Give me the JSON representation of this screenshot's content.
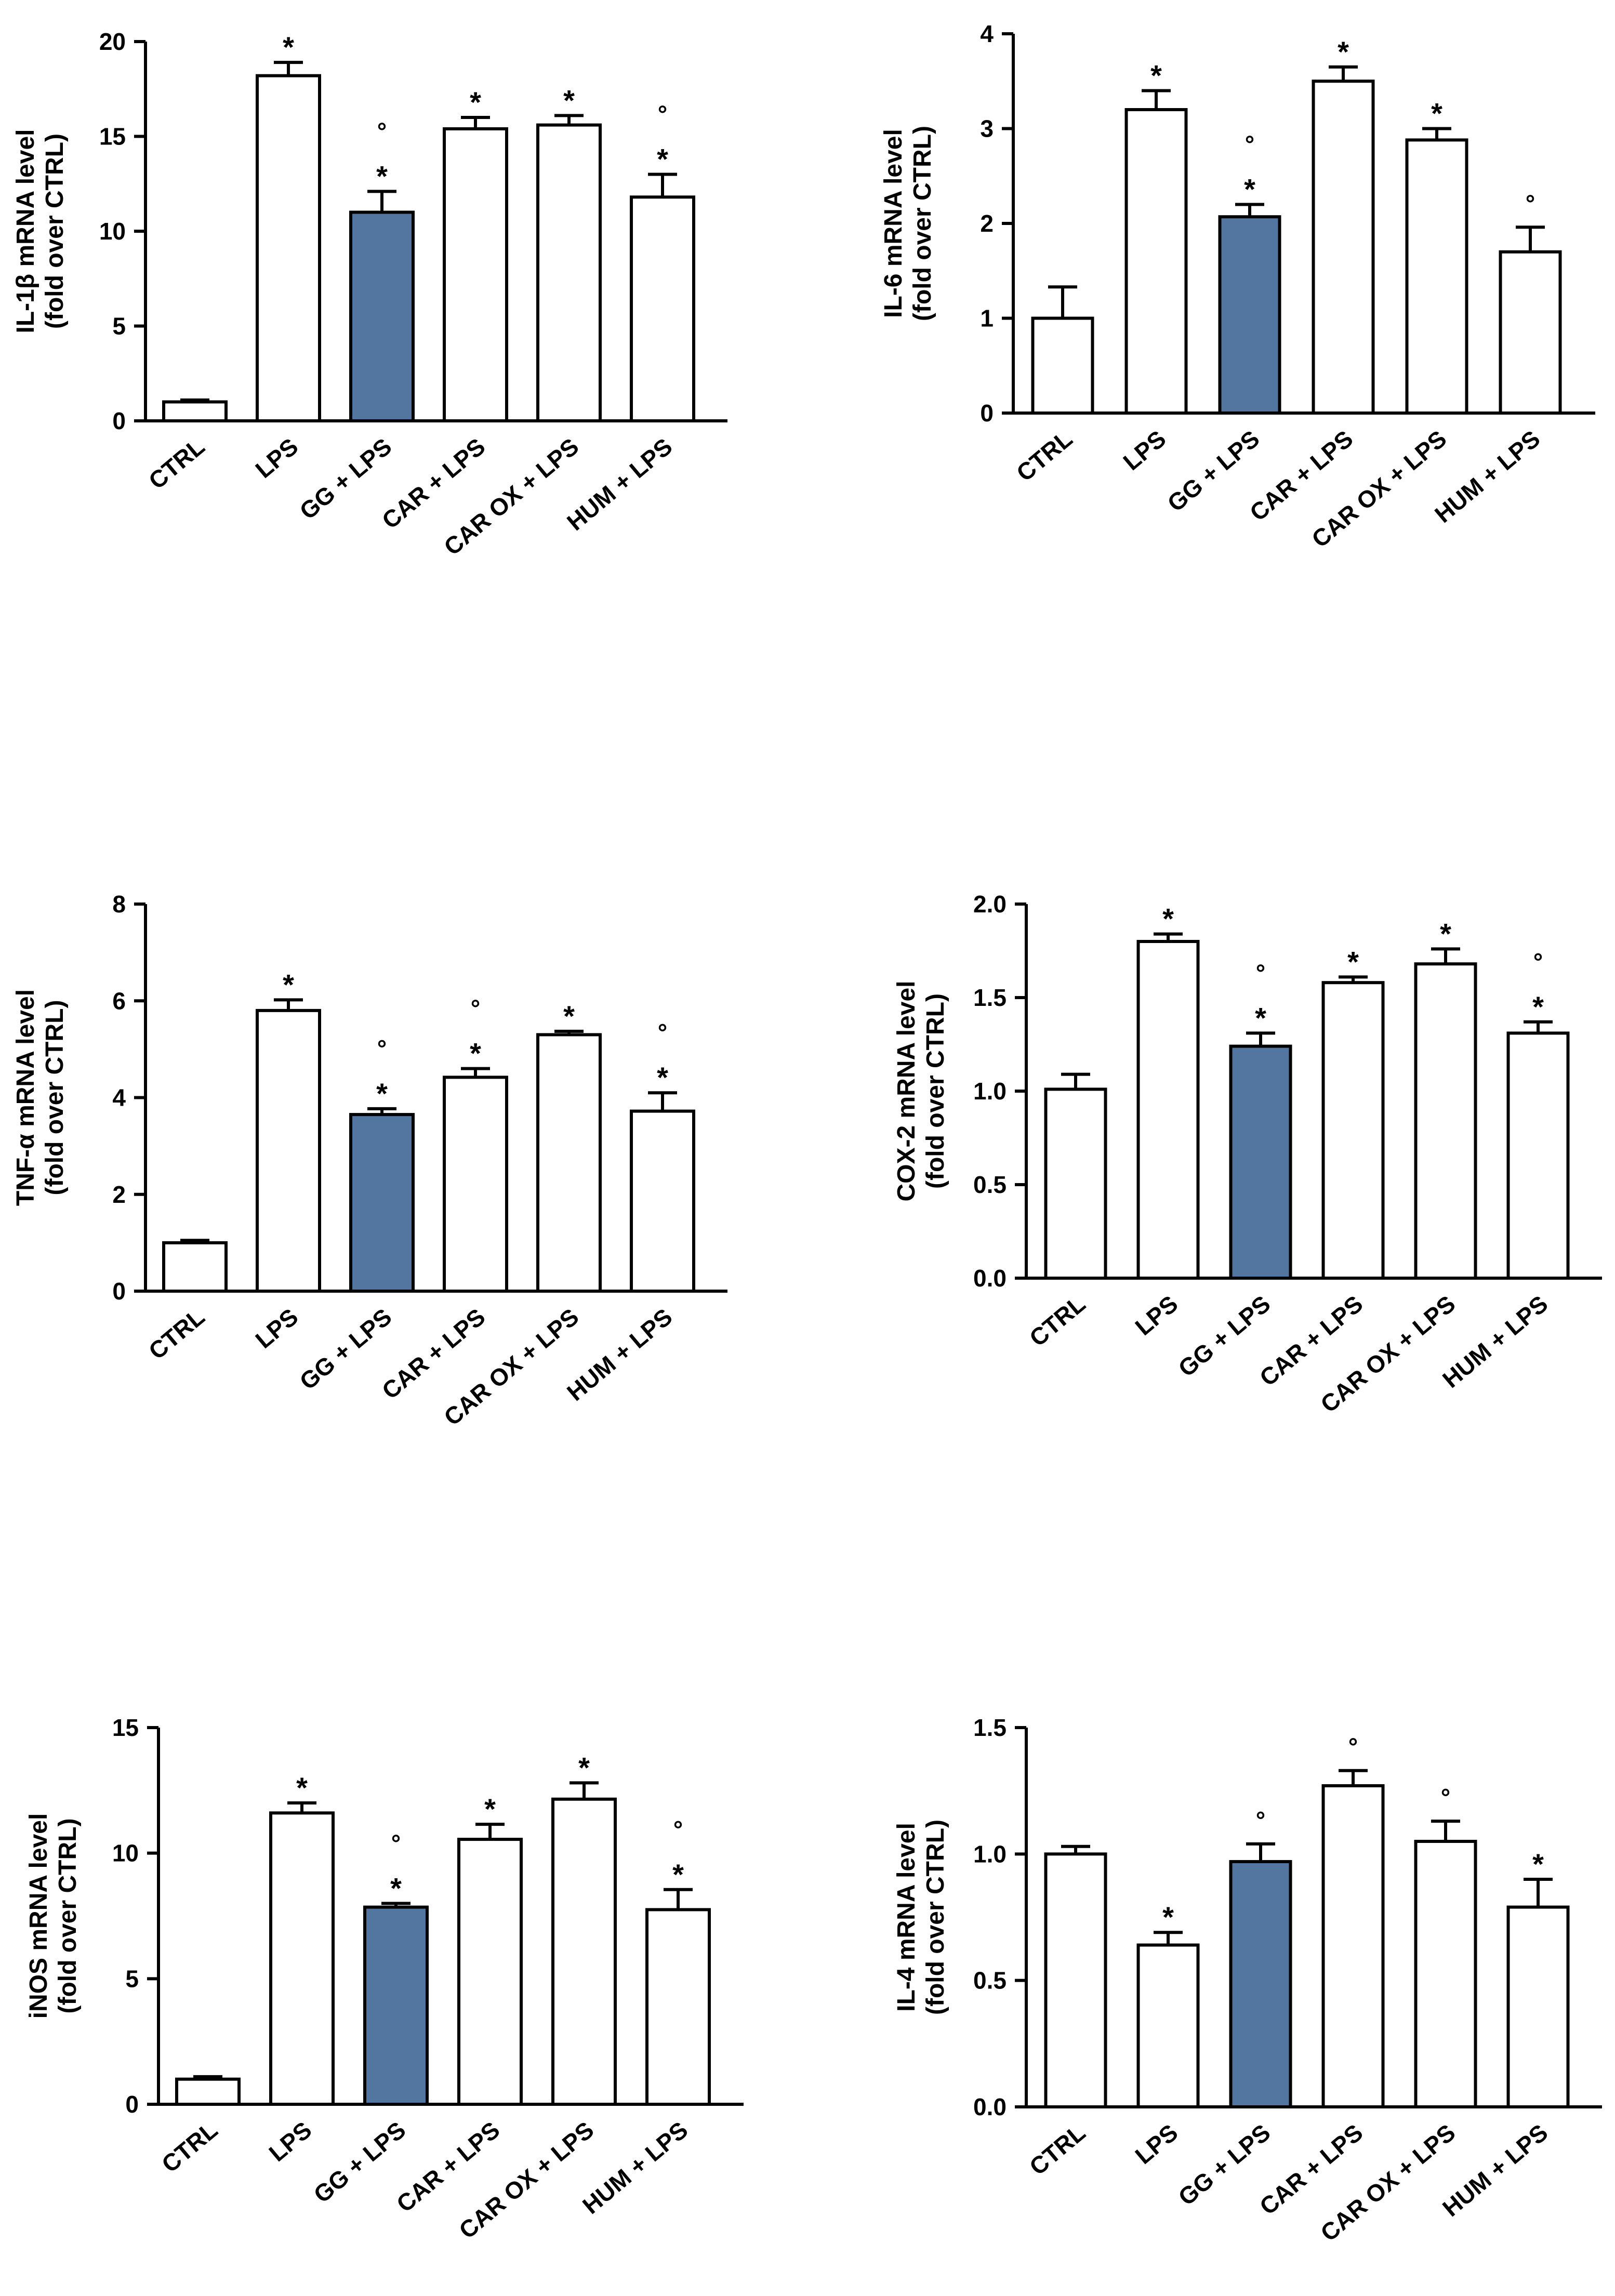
{
  "colors": {
    "highlight": "#52769f",
    "default": "#ffffff",
    "stroke": "#000000"
  },
  "chart_data": [
    {
      "id": "il1b",
      "type": "bar",
      "ylabel_line1": "IL-1β mRNA level",
      "ylabel_line2": "(fold over CTRL)",
      "ylim": [
        0,
        20
      ],
      "yticks": [
        0,
        5,
        10,
        15,
        20
      ],
      "tick_labels": [
        "0",
        "5",
        "10",
        "15",
        "20"
      ],
      "categories": [
        "CTRL",
        "LPS",
        "GG + LPS",
        "CAR + LPS",
        "CAR OX + LPS",
        "HUM + LPS"
      ],
      "values": [
        1.0,
        18.2,
        11.0,
        15.4,
        15.6,
        11.8
      ],
      "errors": [
        0.1,
        0.7,
        1.1,
        0.6,
        0.5,
        1.2
      ],
      "highlight": [
        false,
        false,
        true,
        false,
        false,
        false
      ],
      "annotations": [
        "",
        "*",
        "°\n*",
        "*",
        "*",
        "°\n*"
      ]
    },
    {
      "id": "il6",
      "type": "bar",
      "ylabel_line1": "IL-6 mRNA level",
      "ylabel_line2": "(fold over CTRL)",
      "ylim": [
        0,
        4
      ],
      "yticks": [
        0,
        1,
        2,
        3,
        4
      ],
      "tick_labels": [
        "0",
        "1",
        "2",
        "3",
        "4"
      ],
      "categories": [
        "CTRL",
        "LPS",
        "GG + LPS",
        "CAR + LPS",
        "CAR OX + LPS",
        "HUM + LPS"
      ],
      "values": [
        1.0,
        3.2,
        2.07,
        3.5,
        2.88,
        1.7
      ],
      "errors": [
        0.33,
        0.2,
        0.13,
        0.15,
        0.12,
        0.26
      ],
      "highlight": [
        false,
        false,
        true,
        false,
        false,
        false
      ],
      "annotations": [
        "",
        "*",
        "°\n*",
        "*",
        "*",
        "°"
      ]
    },
    {
      "id": "tnfa",
      "type": "bar",
      "ylabel_line1": "TNF-α mRNA level",
      "ylabel_line2": "(fold over CTRL)",
      "ylim": [
        0,
        8
      ],
      "yticks": [
        0,
        2,
        4,
        6,
        8
      ],
      "tick_labels": [
        "0",
        "2",
        "4",
        "6",
        "8"
      ],
      "categories": [
        "CTRL",
        "LPS",
        "GG + LPS",
        "CAR + LPS",
        "CAR OX + LPS",
        "HUM + LPS"
      ],
      "values": [
        1.0,
        5.8,
        3.65,
        4.42,
        5.3,
        3.72
      ],
      "errors": [
        0.05,
        0.22,
        0.12,
        0.18,
        0.07,
        0.38
      ],
      "highlight": [
        false,
        false,
        true,
        false,
        false,
        false
      ],
      "annotations": [
        "",
        "*",
        "°\n*",
        "°\n*",
        "*",
        "°\n*"
      ]
    },
    {
      "id": "cox2",
      "type": "bar",
      "ylabel_line1": "COX-2 mRNA level",
      "ylabel_line2": "(fold over CTRL)",
      "ylim": [
        0,
        2.0
      ],
      "yticks": [
        0,
        0.5,
        1.0,
        1.5,
        2.0
      ],
      "tick_labels": [
        "0.0",
        "0.5",
        "1.0",
        "1.5",
        "2.0"
      ],
      "categories": [
        "CTRL",
        "LPS",
        "GG + LPS",
        "CAR + LPS",
        "CAR OX + LPS",
        "HUM + LPS"
      ],
      "values": [
        1.01,
        1.8,
        1.24,
        1.58,
        1.68,
        1.31
      ],
      "errors": [
        0.08,
        0.04,
        0.07,
        0.03,
        0.08,
        0.06
      ],
      "highlight": [
        false,
        false,
        true,
        false,
        false,
        false
      ],
      "annotations": [
        "",
        "*",
        "°\n*",
        "*",
        "*",
        "°\n*"
      ]
    },
    {
      "id": "inos",
      "type": "bar",
      "ylabel_line1": "iNOS mRNA level",
      "ylabel_line2": "(fold over CTRL)",
      "ylim": [
        0,
        15
      ],
      "yticks": [
        0,
        5,
        10,
        15
      ],
      "tick_labels": [
        "0",
        "5",
        "10",
        "15"
      ],
      "categories": [
        "CTRL",
        "LPS",
        "GG + LPS",
        "CAR + LPS",
        "CAR OX + LPS",
        "HUM + LPS"
      ],
      "values": [
        1.0,
        11.6,
        7.85,
        10.55,
        12.15,
        7.75
      ],
      "errors": [
        0.1,
        0.4,
        0.15,
        0.6,
        0.65,
        0.8
      ],
      "highlight": [
        false,
        false,
        true,
        false,
        false,
        false
      ],
      "annotations": [
        "",
        "*",
        "°\n*",
        "*",
        "*",
        "°\n*"
      ]
    },
    {
      "id": "il4",
      "type": "bar",
      "ylabel_line1": "IL-4 mRNA level",
      "ylabel_line2": "(fold over CTRL)",
      "ylim": [
        0,
        1.5
      ],
      "yticks": [
        0,
        0.5,
        1.0,
        1.5
      ],
      "tick_labels": [
        "0.0",
        "0.5",
        "1.0",
        "1.5"
      ],
      "categories": [
        "CTRL",
        "LPS",
        "GG + LPS",
        "CAR + LPS",
        "CAR OX + LPS",
        "HUM + LPS"
      ],
      "values": [
        1.0,
        0.64,
        0.97,
        1.27,
        1.05,
        0.79
      ],
      "errors": [
        0.03,
        0.05,
        0.07,
        0.06,
        0.08,
        0.11
      ],
      "highlight": [
        false,
        false,
        true,
        false,
        false,
        false
      ],
      "annotations": [
        "",
        "*",
        "°",
        "°",
        "°",
        "*"
      ]
    }
  ]
}
